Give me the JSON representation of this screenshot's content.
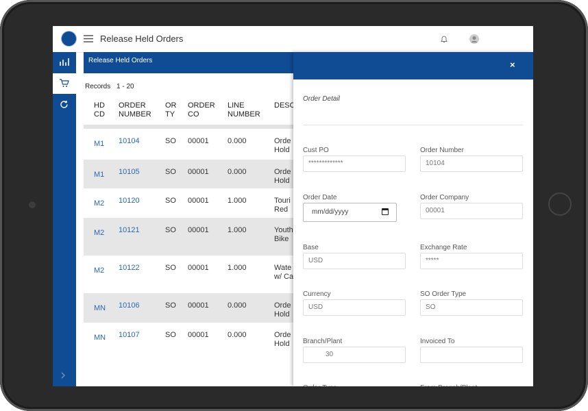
{
  "header": {
    "title": "Release Held Orders"
  },
  "list": {
    "title": "Release Held Orders",
    "records_label": "Records",
    "records_range": "1 - 20",
    "columns": [
      [
        "HD",
        "CD"
      ],
      [
        "ORDER",
        "NUMBER"
      ],
      [
        "OR",
        "TY"
      ],
      [
        "ORDER",
        "CO"
      ],
      [
        "LINE",
        "NUMBER"
      ],
      [
        "DESC"
      ]
    ],
    "rows": [
      {
        "hd": "M1",
        "order": "10104",
        "ty": "SO",
        "co": "00001",
        "line": "0.000",
        "desc": [
          "Orde",
          "Hold"
        ]
      },
      {
        "hd": "M1",
        "order": "10105",
        "ty": "SO",
        "co": "00001",
        "line": "0.000",
        "desc": [
          "Orde",
          "Hold"
        ]
      },
      {
        "hd": "M2",
        "order": "10120",
        "ty": "SO",
        "co": "00001",
        "line": "1.000",
        "desc": [
          "Touri",
          "Red"
        ]
      },
      {
        "hd": "M2",
        "order": "10121",
        "ty": "SO",
        "co": "00001",
        "line": "1.000",
        "desc": [
          "Youth",
          "Bike"
        ]
      },
      {
        "hd": "M2",
        "order": "10122",
        "ty": "SO",
        "co": "00001",
        "line": "1.000",
        "desc": [
          "Wate",
          "w/ Ca"
        ]
      },
      {
        "hd": "MN",
        "order": "10106",
        "ty": "SO",
        "co": "00001",
        "line": "0.000",
        "desc": [
          "Orde",
          "Hold"
        ]
      },
      {
        "hd": "MN",
        "order": "10107",
        "ty": "SO",
        "co": "00001",
        "line": "0.000",
        "desc": [
          "Orde",
          "Hold"
        ]
      }
    ]
  },
  "detail": {
    "close": "×",
    "title": "Order Detail",
    "fields": [
      {
        "label": "Cust PO",
        "value": "*************"
      },
      {
        "label": "Order Number",
        "value": "10104"
      },
      {
        "label": "Order Date",
        "value": "mm/dd/yyyy"
      },
      {
        "label": "Order Company",
        "value": "00001"
      },
      {
        "label": "Base",
        "value": "USD"
      },
      {
        "label": "Exchange Rate",
        "value": "*****"
      },
      {
        "label": "Currency",
        "value": "USD"
      },
      {
        "label": "SO Order Type",
        "value": "SO"
      },
      {
        "label": "Branch/Plant",
        "value": "30"
      },
      {
        "label": "Invoiced To"
      },
      {
        "label": "Order Type"
      },
      {
        "label": "From Branch/Plant"
      }
    ]
  }
}
